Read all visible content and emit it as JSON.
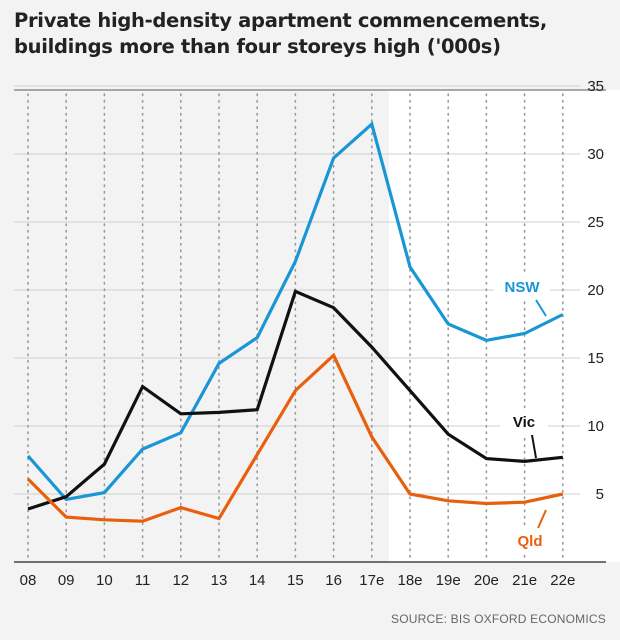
{
  "title_lines": [
    "Private high-density apartment commencements,",
    "buildings more than four storeys high ('000s)"
  ],
  "source": "SOURCE: BIS OXFORD ECONOMICS",
  "chart_data": {
    "type": "line",
    "categories": [
      "08",
      "09",
      "10",
      "11",
      "12",
      "13",
      "14",
      "15",
      "16",
      "17e",
      "18e",
      "19e",
      "20e",
      "21e",
      "22e"
    ],
    "forecast_start_index": 10,
    "ylim": [
      0,
      35
    ],
    "yticks": [
      5,
      10,
      15,
      20,
      25,
      30,
      35
    ],
    "grid": true,
    "series": [
      {
        "name": "NSW",
        "color": "#1a96d4",
        "values": [
          7.8,
          4.6,
          5.1,
          8.3,
          9.5,
          14.6,
          16.5,
          22.1,
          29.7,
          32.2,
          21.7,
          17.5,
          16.3,
          16.8,
          18.2
        ]
      },
      {
        "name": "Vic",
        "color": "#111111",
        "values": [
          3.9,
          4.8,
          7.2,
          12.9,
          10.9,
          11.0,
          11.2,
          19.9,
          18.7,
          15.8,
          12.6,
          9.4,
          7.6,
          7.4,
          7.7
        ]
      },
      {
        "name": "Qld",
        "color": "#e8600e",
        "values": [
          6.1,
          3.3,
          3.1,
          3.0,
          4.0,
          3.2,
          7.9,
          12.6,
          15.2,
          9.2,
          5.0,
          4.5,
          4.3,
          4.4,
          5.0
        ]
      }
    ]
  }
}
